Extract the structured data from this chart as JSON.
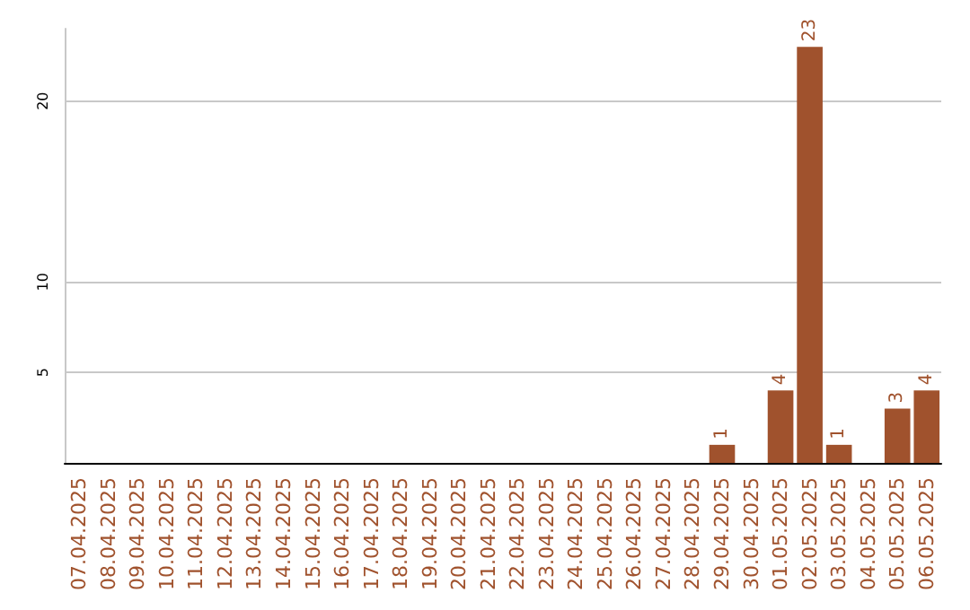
{
  "chart_data": {
    "type": "bar",
    "categories": [
      "07.04.2025",
      "08.04.2025",
      "09.04.2025",
      "10.04.2025",
      "11.04.2025",
      "12.04.2025",
      "13.04.2025",
      "14.04.2025",
      "15.04.2025",
      "16.04.2025",
      "17.04.2025",
      "18.04.2025",
      "19.04.2025",
      "20.04.2025",
      "21.04.2025",
      "22.04.2025",
      "23.04.2025",
      "24.04.2025",
      "25.04.2025",
      "26.04.2025",
      "27.04.2025",
      "28.04.2025",
      "29.04.2025",
      "30.04.2025",
      "01.05.2025",
      "02.05.2025",
      "03.05.2025",
      "04.05.2025",
      "05.05.2025",
      "06.05.2025"
    ],
    "values": [
      0,
      0,
      0,
      0,
      0,
      0,
      0,
      0,
      0,
      0,
      0,
      0,
      0,
      0,
      0,
      0,
      0,
      0,
      0,
      0,
      0,
      0,
      1,
      0,
      4,
      23,
      1,
      0,
      3,
      4
    ],
    "value_labels": [
      null,
      null,
      null,
      null,
      null,
      null,
      null,
      null,
      null,
      null,
      null,
      null,
      null,
      null,
      null,
      null,
      null,
      null,
      null,
      null,
      null,
      null,
      "1",
      null,
      "4",
      "23",
      "1",
      null,
      "3",
      "4"
    ],
    "color": "#a0522d",
    "ylim": [
      0,
      24
    ],
    "yticks": [
      5,
      10,
      20
    ],
    "grid": "y"
  }
}
